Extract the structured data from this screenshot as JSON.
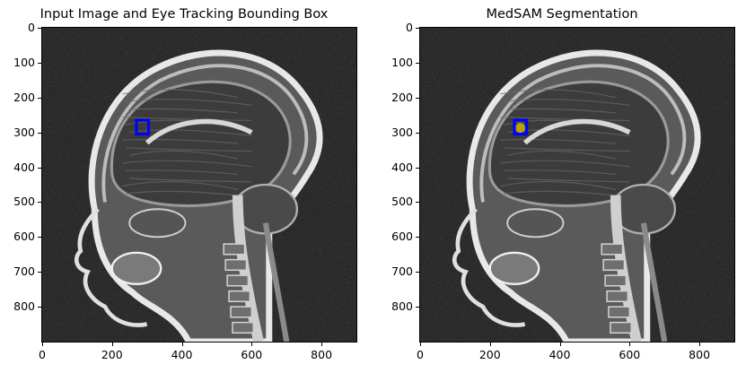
{
  "panels": [
    {
      "title": "Input Image and Eye Tracking Bounding Box",
      "show_segmentation": false
    },
    {
      "title": "MedSAM Segmentation",
      "show_segmentation": true
    }
  ],
  "axes": {
    "x_ticks": [
      "0",
      "200",
      "400",
      "600",
      "800"
    ],
    "y_ticks": [
      "0",
      "100",
      "200",
      "300",
      "400",
      "500",
      "600",
      "700",
      "800"
    ],
    "x_range": [
      0,
      900
    ],
    "y_range": [
      0,
      900
    ]
  },
  "bounding_box": {
    "x_min": 270,
    "y_min": 265,
    "x_max": 305,
    "y_max": 305,
    "color": "#0000ff"
  },
  "segmentation": {
    "center_x": 287,
    "center_y": 287,
    "color": "#c8b400"
  },
  "image": {
    "modality": "sagittal head MRI",
    "background_color": "#0e0e0e"
  }
}
